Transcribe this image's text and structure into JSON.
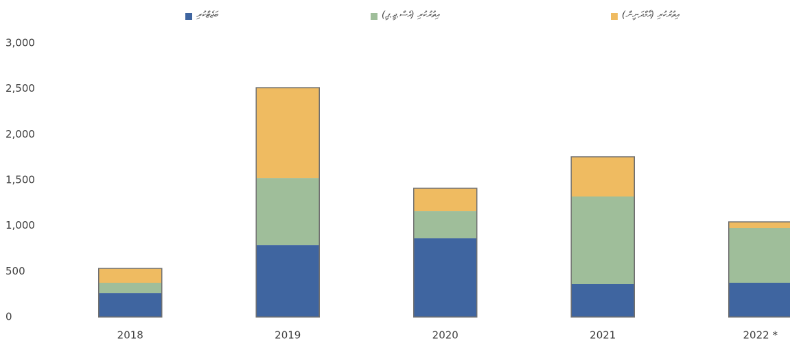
{
  "chart_data": {
    "type": "stacked_bar",
    "categories": [
      "2018",
      "2019",
      "2020",
      "2021",
      "2022 *"
    ],
    "series": [
      {
        "name": "ބަޖެޓްކުރި",
        "color": "#3f65a0",
        "values": [
          262,
          787,
          862,
          360,
          375
        ]
      },
      {
        "name": "އިތުރުކުރި (އެސް.ޖީ.ޕީ)",
        "color": "#9fbe9a",
        "values": [
          113,
          735,
          300,
          960,
          600
        ]
      },
      {
        "name": "އިތުރުކުރި (އާމްދަނީން)",
        "color": "#efbb61",
        "values": [
          157,
          990,
          248,
          435,
          67
        ]
      }
    ],
    "ylim": [
      0,
      3000
    ],
    "yticks": [
      0,
      500,
      {
        "value": 1000,
        "label": "1,000"
      },
      {
        "value": 1500,
        "label": "1,500"
      },
      {
        "value": 2000,
        "label": "2,000"
      },
      {
        "value": 2500,
        "label": "2,500"
      },
      {
        "value": 3000,
        "label": "3,000"
      }
    ],
    "legend": "top",
    "grid": false
  }
}
